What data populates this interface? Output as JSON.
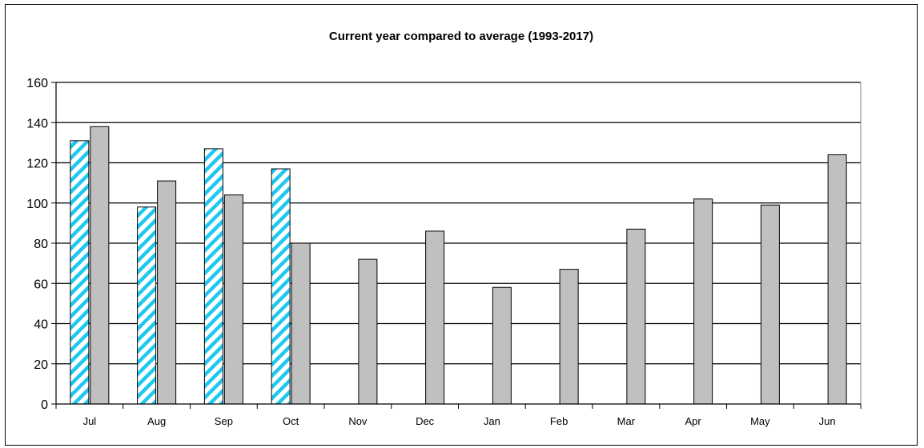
{
  "chart_data": {
    "type": "bar",
    "title": "Current year compared to average (1993-2017)",
    "xlabel": "",
    "ylabel": "",
    "categories": [
      "Jul",
      "Aug",
      "Sep",
      "Oct",
      "Nov",
      "Dec",
      "Jan",
      "Feb",
      "Mar",
      "Apr",
      "May",
      "Jun"
    ],
    "ylim": [
      0,
      160
    ],
    "yticks": [
      0,
      20,
      40,
      60,
      80,
      100,
      120,
      140,
      160
    ],
    "grid": true,
    "legend": "none",
    "series": [
      {
        "values": [
          131,
          98,
          127,
          117,
          null,
          null,
          null,
          null,
          null,
          null,
          null,
          null
        ],
        "color": "#1ec8f0",
        "pattern": "diagonal-hatch"
      },
      {
        "values": [
          138,
          111,
          104,
          80,
          72,
          86,
          58,
          67,
          87,
          102,
          99,
          124
        ],
        "color": "#c0c0c0",
        "pattern": "solid"
      }
    ]
  }
}
